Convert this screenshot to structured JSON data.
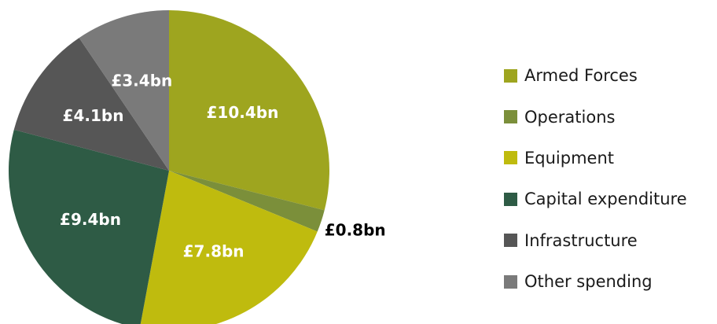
{
  "chart_data": {
    "type": "pie",
    "categories": [
      "Armed Forces",
      "Operations",
      "Equipment",
      "Capital expenditure",
      "Infrastructure",
      "Other spending"
    ],
    "values": [
      10.4,
      0.8,
      7.8,
      9.4,
      4.1,
      3.4
    ],
    "labels": [
      "£10.4bn",
      "£0.8bn",
      "£7.8bn",
      "£9.4bn",
      "£4.1bn",
      "£3.4bn"
    ],
    "colors": [
      "#9ea51f",
      "#7b8f3a",
      "#bfbb0e",
      "#2e5b45",
      "#565656",
      "#7a7a7a"
    ],
    "label_colors": [
      "#ffffff",
      "#000000",
      "#ffffff",
      "#ffffff",
      "#ffffff",
      "#ffffff"
    ],
    "start_angle": "12 o'clock",
    "direction": "clockwise",
    "legend_position": "right"
  }
}
